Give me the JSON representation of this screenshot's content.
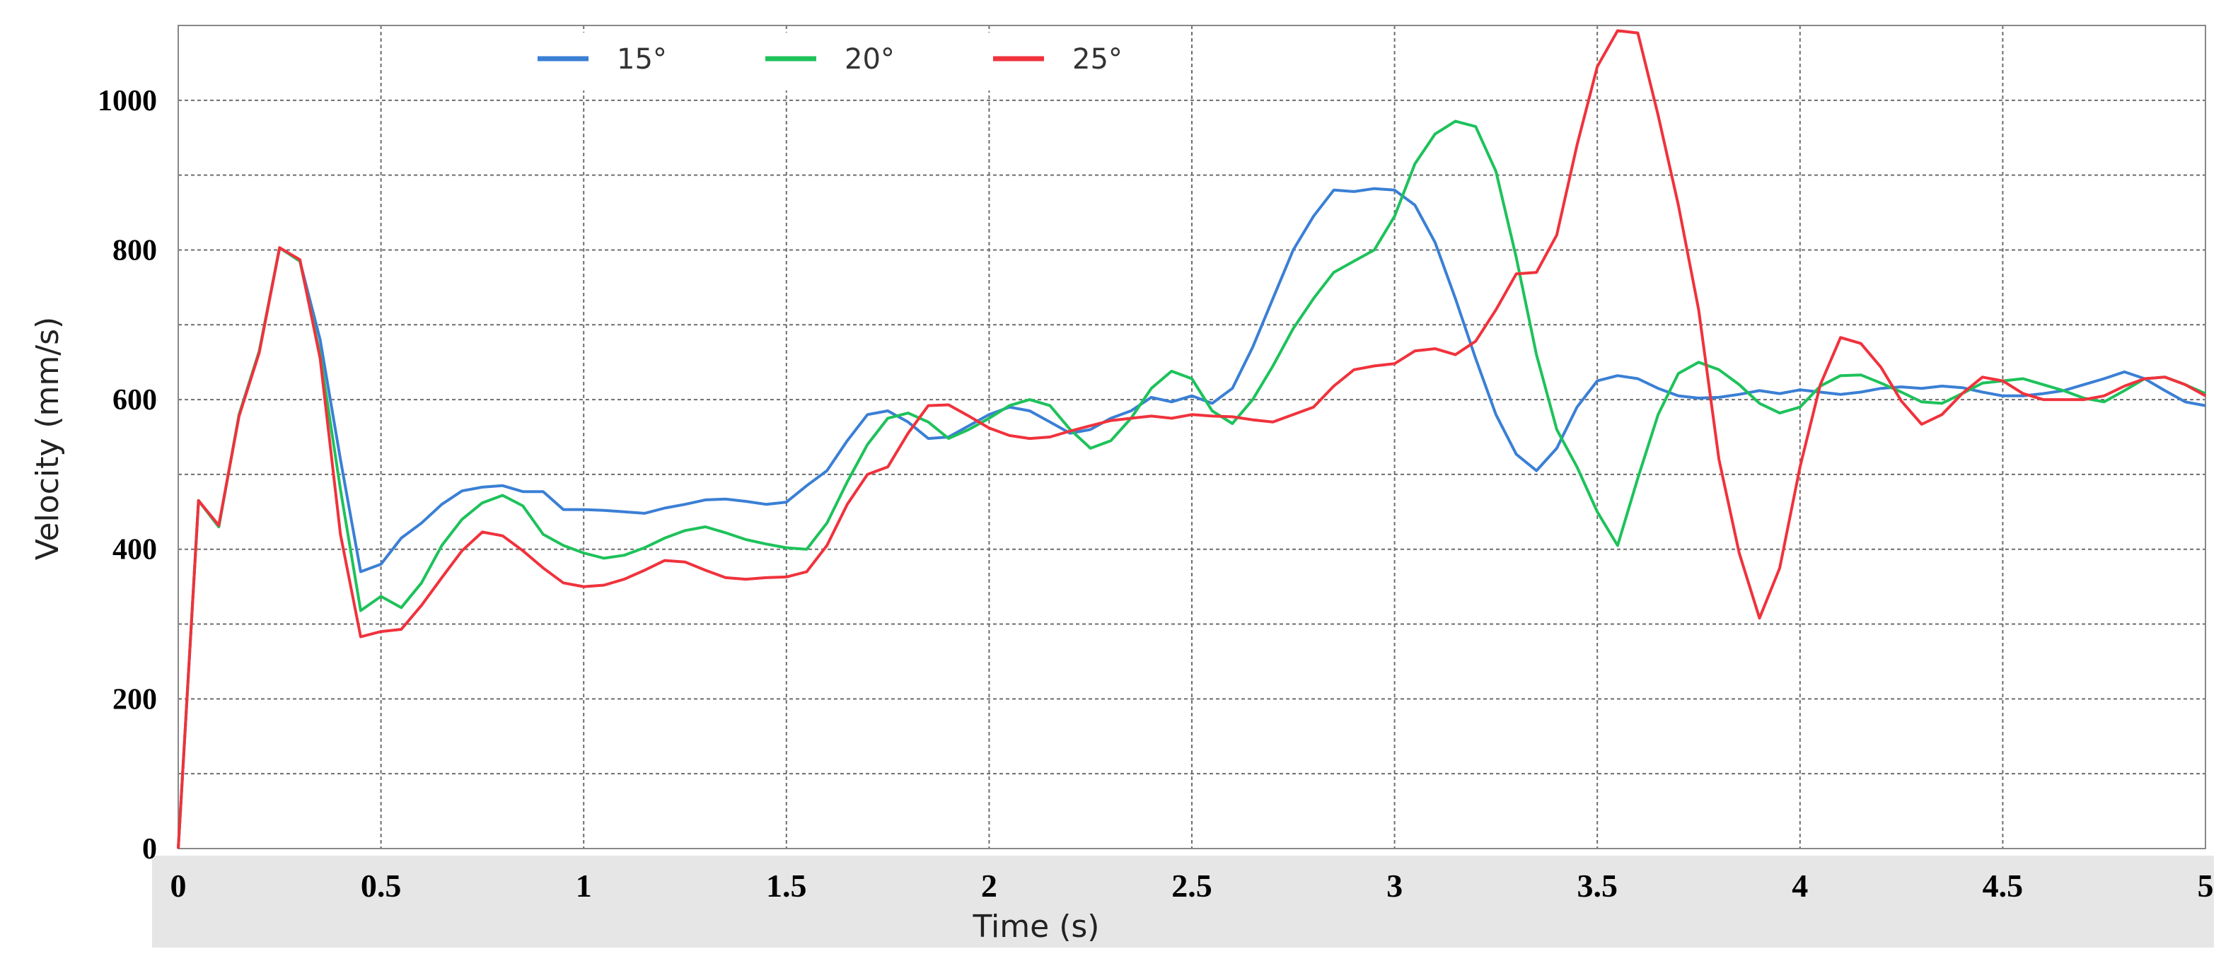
{
  "chart_data": {
    "type": "line",
    "x_label": "Time (s)",
    "y_label": "Velocity (mm/s)",
    "x": [
      0,
      0.05,
      0.1,
      0.15,
      0.2,
      0.25,
      0.3,
      0.35,
      0.4,
      0.45,
      0.5,
      0.55,
      0.6,
      0.65,
      0.7,
      0.75,
      0.8,
      0.85,
      0.9,
      0.95,
      1,
      1.05,
      1.1,
      1.15,
      1.2,
      1.25,
      1.3,
      1.35,
      1.4,
      1.45,
      1.5,
      1.55,
      1.6,
      1.65,
      1.7,
      1.75,
      1.8,
      1.85,
      1.9,
      1.95,
      2,
      2.05,
      2.1,
      2.15,
      2.2,
      2.25,
      2.3,
      2.35,
      2.4,
      2.45,
      2.5,
      2.55,
      2.6,
      2.65,
      2.7,
      2.75,
      2.8,
      2.85,
      2.9,
      2.95,
      3,
      3.05,
      3.1,
      3.15,
      3.2,
      3.25,
      3.3,
      3.35,
      3.4,
      3.45,
      3.5,
      3.55,
      3.6,
      3.65,
      3.7,
      3.75,
      3.8,
      3.85,
      3.9,
      3.95,
      4,
      4.05,
      4.1,
      4.15,
      4.2,
      4.25,
      4.3,
      4.35,
      4.4,
      4.45,
      4.5,
      4.55,
      4.6,
      4.65,
      4.7,
      4.75,
      4.8,
      4.85,
      4.9,
      4.95,
      5
    ],
    "series": [
      {
        "name": "15°",
        "color": "#3a7fd5",
        "values": [
          0,
          465,
          430,
          580,
          665,
          803,
          785,
          680,
          520,
          370,
          380,
          415,
          435,
          460,
          478,
          483,
          485,
          477,
          477,
          453,
          453,
          452,
          450,
          448,
          455,
          460,
          466,
          467,
          464,
          460,
          463,
          485,
          505,
          545,
          580,
          585,
          570,
          548,
          550,
          565,
          580,
          590,
          585,
          570,
          555,
          560,
          575,
          585,
          603,
          597,
          605,
          595,
          615,
          670,
          735,
          800,
          845,
          880,
          878,
          882,
          880,
          860,
          810,
          735,
          655,
          580,
          527,
          505,
          535,
          590,
          625,
          632,
          628,
          615,
          605,
          602,
          603,
          607,
          612,
          608,
          613,
          610,
          607,
          610,
          615,
          617,
          615,
          618,
          616,
          610,
          605,
          605,
          608,
          612,
          620,
          628,
          637,
          628,
          612,
          597,
          592
        ]
      },
      {
        "name": "20°",
        "color": "#1dc25a",
        "values": [
          0,
          465,
          430,
          580,
          665,
          803,
          785,
          660,
          480,
          318,
          337,
          322,
          355,
          405,
          440,
          462,
          472,
          458,
          420,
          405,
          395,
          388,
          392,
          402,
          415,
          425,
          430,
          422,
          413,
          407,
          402,
          400,
          435,
          490,
          540,
          575,
          582,
          570,
          548,
          560,
          575,
          592,
          600,
          592,
          560,
          535,
          545,
          575,
          615,
          638,
          628,
          585,
          568,
          600,
          645,
          695,
          735,
          770,
          785,
          800,
          845,
          915,
          955,
          972,
          965,
          905,
          790,
          660,
          560,
          510,
          450,
          405,
          495,
          580,
          635,
          650,
          640,
          620,
          595,
          582,
          590,
          618,
          632,
          633,
          622,
          610,
          597,
          595,
          608,
          622,
          625,
          628,
          620,
          612,
          602,
          597,
          612,
          628,
          630,
          620,
          608
        ]
      },
      {
        "name": "25°",
        "color": "#f0323c",
        "values": [
          0,
          465,
          432,
          578,
          663,
          803,
          787,
          655,
          420,
          283,
          290,
          293,
          325,
          362,
          398,
          423,
          418,
          398,
          375,
          355,
          350,
          352,
          360,
          372,
          385,
          383,
          372,
          362,
          360,
          362,
          363,
          370,
          405,
          460,
          500,
          510,
          555,
          592,
          593,
          578,
          562,
          552,
          548,
          550,
          558,
          565,
          572,
          575,
          578,
          575,
          580,
          578,
          577,
          573,
          570,
          580,
          590,
          618,
          640,
          645,
          648,
          665,
          668,
          660,
          678,
          720,
          768,
          770,
          820,
          940,
          1045,
          1093,
          1090,
          980,
          860,
          720,
          520,
          395,
          308,
          375,
          510,
          620,
          683,
          675,
          643,
          598,
          567,
          580,
          608,
          630,
          625,
          608,
          600,
          600,
          600,
          605,
          618,
          628,
          630,
          620,
          605
        ]
      }
    ],
    "xlim": [
      0,
      5
    ],
    "xticks": [
      0,
      0.5,
      1,
      1.5,
      2,
      2.5,
      3,
      3.5,
      4,
      4.5,
      5
    ],
    "ylim": [
      0,
      1100
    ],
    "yticks": [
      0,
      200,
      400,
      600,
      800,
      1000
    ],
    "grid": true,
    "legend": "top"
  }
}
